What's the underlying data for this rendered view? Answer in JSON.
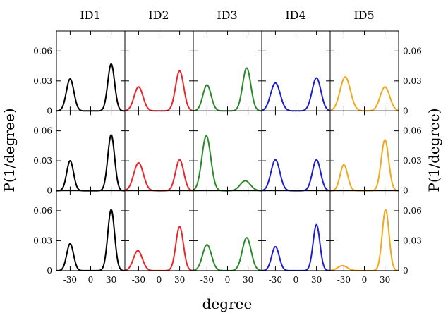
{
  "chart_data": {
    "type": "line",
    "layout": "3x5 panel grid",
    "column_titles": [
      "ID1",
      "ID2",
      "ID3",
      "ID4",
      "ID5"
    ],
    "column_colors": [
      "#000000",
      "#e8262b",
      "#2a8a2a",
      "#1d1dd2",
      "#f2a81d"
    ],
    "xlabel": "degree",
    "ylabel": "P(1/degree)",
    "xlim": [
      -50,
      50
    ],
    "ylim": [
      0,
      0.08
    ],
    "x_ticks": [
      -30,
      0,
      30
    ],
    "x_tick_labels": [
      "-30",
      "0",
      "30"
    ],
    "y_ticks": [
      0,
      0.03,
      0.06
    ],
    "y_tick_labels": [
      "0",
      "0.03",
      "0.06"
    ],
    "y_ticks_shown_on": "left and right",
    "grid": false,
    "panels": [
      [
        {
          "peaks": [
            {
              "x": -30,
              "height": 0.032,
              "width": 5.5
            },
            {
              "x": 30,
              "height": 0.047,
              "width": 5.0
            }
          ]
        },
        {
          "peaks": [
            {
              "x": -30,
              "height": 0.024,
              "width": 6.5
            },
            {
              "x": 30,
              "height": 0.04,
              "width": 6.0
            }
          ]
        },
        {
          "peaks": [
            {
              "x": -30,
              "height": 0.026,
              "width": 6.0
            },
            {
              "x": 28,
              "height": 0.043,
              "width": 6.0
            }
          ]
        },
        {
          "peaks": [
            {
              "x": -30,
              "height": 0.028,
              "width": 7.0
            },
            {
              "x": 30,
              "height": 0.033,
              "width": 6.5
            }
          ]
        },
        {
          "peaks": [
            {
              "x": -28,
              "height": 0.034,
              "width": 7.5
            },
            {
              "x": 30,
              "height": 0.024,
              "width": 7.0
            }
          ]
        }
      ],
      [
        {
          "peaks": [
            {
              "x": -30,
              "height": 0.03,
              "width": 5.0
            },
            {
              "x": 30,
              "height": 0.056,
              "width": 5.0
            }
          ]
        },
        {
          "peaks": [
            {
              "x": -30,
              "height": 0.028,
              "width": 7.0
            },
            {
              "x": 30,
              "height": 0.031,
              "width": 6.0
            }
          ]
        },
        {
          "peaks": [
            {
              "x": -31,
              "height": 0.055,
              "width": 6.5
            },
            {
              "x": 26,
              "height": 0.01,
              "width": 7.5
            }
          ]
        },
        {
          "peaks": [
            {
              "x": -30,
              "height": 0.031,
              "width": 6.5
            },
            {
              "x": 30,
              "height": 0.031,
              "width": 6.0
            }
          ]
        },
        {
          "peaks": [
            {
              "x": -30,
              "height": 0.026,
              "width": 5.5
            },
            {
              "x": 30,
              "height": 0.051,
              "width": 5.5
            }
          ]
        }
      ],
      [
        {
          "peaks": [
            {
              "x": -30,
              "height": 0.027,
              "width": 5.0
            },
            {
              "x": 30,
              "height": 0.061,
              "width": 5.0
            }
          ]
        },
        {
          "peaks": [
            {
              "x": -31,
              "height": 0.02,
              "width": 6.5
            },
            {
              "x": 30,
              "height": 0.044,
              "width": 5.5
            }
          ]
        },
        {
          "peaks": [
            {
              "x": -30,
              "height": 0.026,
              "width": 6.5
            },
            {
              "x": 28,
              "height": 0.033,
              "width": 6.5
            }
          ]
        },
        {
          "peaks": [
            {
              "x": -30,
              "height": 0.024,
              "width": 5.5
            },
            {
              "x": 30,
              "height": 0.046,
              "width": 5.0
            }
          ]
        },
        {
          "peaks": [
            {
              "x": -32,
              "height": 0.005,
              "width": 7.0
            },
            {
              "x": 31,
              "height": 0.061,
              "width": 5.0
            }
          ]
        }
      ]
    ]
  }
}
